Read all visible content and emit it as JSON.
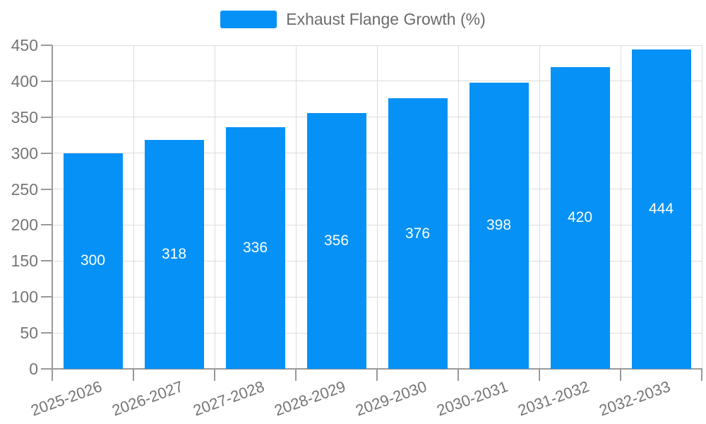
{
  "legend": {
    "label": "Exhaust Flange Growth (%)"
  },
  "chart_data": {
    "type": "bar",
    "title": "Exhaust Flange Growth (%)",
    "series_name": "Exhaust Flange Growth (%)",
    "categories": [
      "2025-2026",
      "2026-2027",
      "2027-2028",
      "2028-2029",
      "2029-2030",
      "2030-2031",
      "2031-2032",
      "2032-2033"
    ],
    "values": [
      300,
      318,
      336,
      356,
      376,
      398,
      420,
      444
    ],
    "value_labels": [
      "300",
      "318",
      "336",
      "356",
      "376",
      "398",
      "420",
      "444"
    ],
    "xlabel": "",
    "ylabel": "",
    "ylim": [
      0,
      450
    ],
    "ytick_step": 50,
    "yticks": [
      0,
      50,
      100,
      150,
      200,
      250,
      300,
      350,
      400,
      450
    ],
    "grid": true,
    "legend_position": "top-center",
    "colors": {
      "bar": "#0591f5",
      "value_label": "#ffffff",
      "axis": "#999999",
      "gridline": "#dcdcdc",
      "axis_text": "#757575",
      "legend_text": "#6b6b6b",
      "background": "#ffffff"
    }
  }
}
